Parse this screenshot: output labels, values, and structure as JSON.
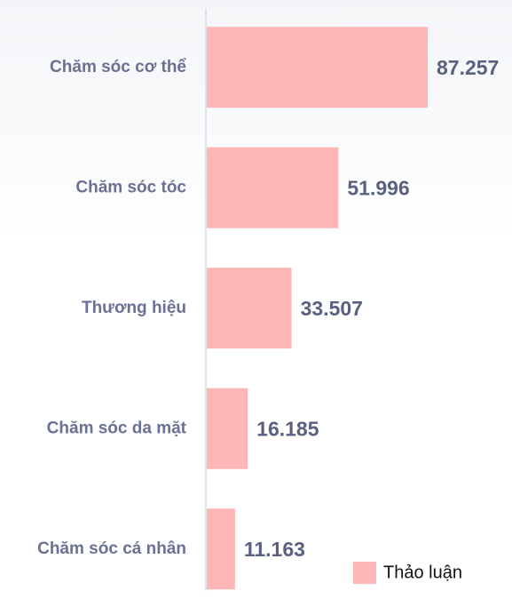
{
  "chart_data": {
    "type": "bar",
    "orientation": "horizontal",
    "categories": [
      "Chăm sóc cơ thể",
      "Chăm sóc tóc",
      "Thương hiệu",
      "Chăm sóc da mặt",
      "Chăm sóc cá nhân"
    ],
    "series": [
      {
        "name": "Thảo luận",
        "color": "#ffb6b6",
        "values": [
          87257,
          51996,
          33507,
          16185,
          11163
        ],
        "value_labels": [
          "87.257",
          "51.996",
          "33.507",
          "16.185",
          "11.163"
        ]
      }
    ],
    "legend": "bottom-right"
  }
}
